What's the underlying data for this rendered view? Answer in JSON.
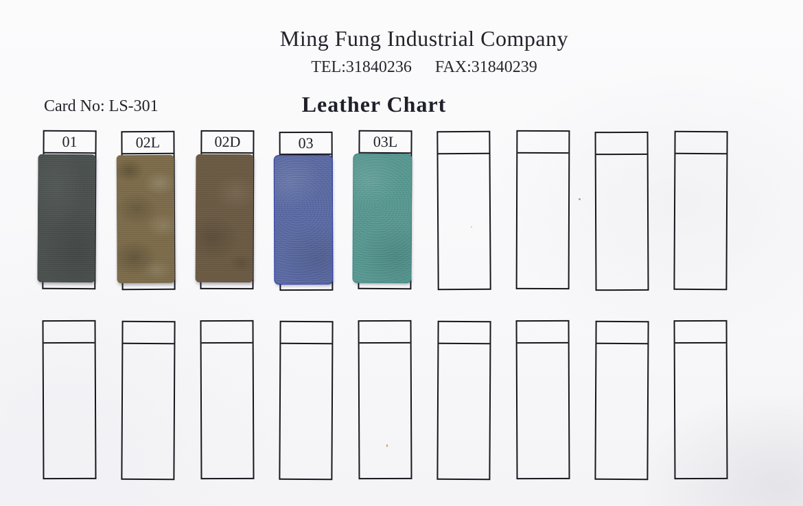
{
  "header": {
    "company": "Ming Fung Industrial Company",
    "tel": "TEL:31840236",
    "fax": "FAX:31840239"
  },
  "card_no": "Card No: LS-301",
  "title": "Leather Chart",
  "swatch_grid": {
    "rows": [
      {
        "slots": [
          {
            "code": "01",
            "swatch": {
              "color": "#4a504e",
              "texture": "smooth"
            }
          },
          {
            "code": "02L",
            "swatch": {
              "color": "#7d6c4a",
              "texture": "marbled"
            }
          },
          {
            "code": "02D",
            "swatch": {
              "color": "#6b5a43",
              "texture": "leather"
            }
          },
          {
            "code": "03",
            "swatch": {
              "color": "#5a6aa5",
              "texture": "pebbled",
              "edge": "#2f3fae"
            }
          },
          {
            "code": "03L",
            "swatch": {
              "color": "#579a93",
              "texture": "pebbled",
              "edge": "#3f8a85"
            }
          },
          {
            "code": ""
          },
          {
            "code": ""
          },
          {
            "code": ""
          },
          {
            "code": ""
          }
        ]
      },
      {
        "slots": [
          {
            "code": ""
          },
          {
            "code": ""
          },
          {
            "code": ""
          },
          {
            "code": ""
          },
          {
            "code": ""
          },
          {
            "code": ""
          },
          {
            "code": ""
          },
          {
            "code": ""
          },
          {
            "code": ""
          }
        ]
      }
    ]
  }
}
